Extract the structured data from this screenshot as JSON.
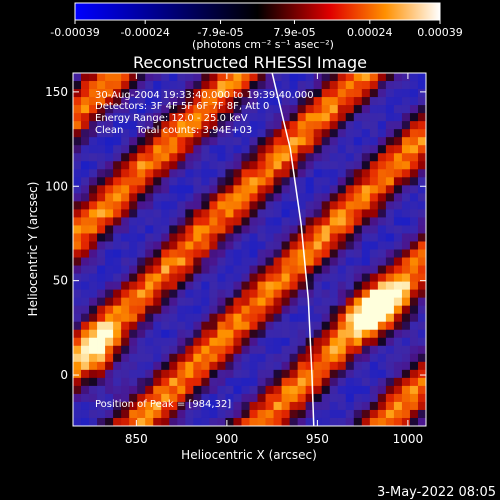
{
  "colorbar": {
    "ticks": [
      "-0.00039",
      "-0.00024",
      "-7.9e-05",
      "7.9e-05",
      "0.00024",
      "0.00039"
    ],
    "tick_values": [
      -0.00039,
      -0.00024,
      -7.9e-05,
      7.9e-05,
      0.00024,
      0.00039
    ],
    "unit": "(photons cm⁻² s⁻¹ asec⁻²)",
    "range": [
      -0.00039,
      0.00039
    ]
  },
  "chart_data": {
    "type": "heatmap",
    "title": "Reconstructed RHESSI Image",
    "xlabel": "Heliocentric X (arcsec)",
    "ylabel": "Heliocentric Y (arcsec)",
    "xlim": [
      815,
      1010
    ],
    "ylim": [
      -27,
      160
    ],
    "x_ticks": [
      "850",
      "900",
      "950",
      "1000"
    ],
    "y_ticks": [
      "0",
      "50",
      "100",
      "150"
    ],
    "x_tick_values": [
      850,
      900,
      950,
      1000
    ],
    "y_tick_values": [
      0,
      50,
      100,
      150
    ],
    "annotations": {
      "time": "30-Aug-2004 19:33:40.000 to 19:39:40.000",
      "detectors": "Detectors: 3F 4F 5F 6F 7F 8F, Att 0",
      "energy": "Energy Range: 12.0 - 25.0 keV",
      "clean": "Clean    Total counts: 3.94E+03",
      "peak": "Position of Peak = [984,32]"
    },
    "peak_position": [
      984,
      32
    ],
    "limb": {
      "description": "solar limb",
      "color": "#ffffff",
      "points": [
        [
          925,
          160
        ],
        [
          935,
          120
        ],
        [
          941,
          80
        ],
        [
          945,
          40
        ],
        [
          947,
          0
        ],
        [
          948,
          -27
        ]
      ]
    }
  },
  "footer": {
    "date": "3-May-2022 08:05"
  }
}
